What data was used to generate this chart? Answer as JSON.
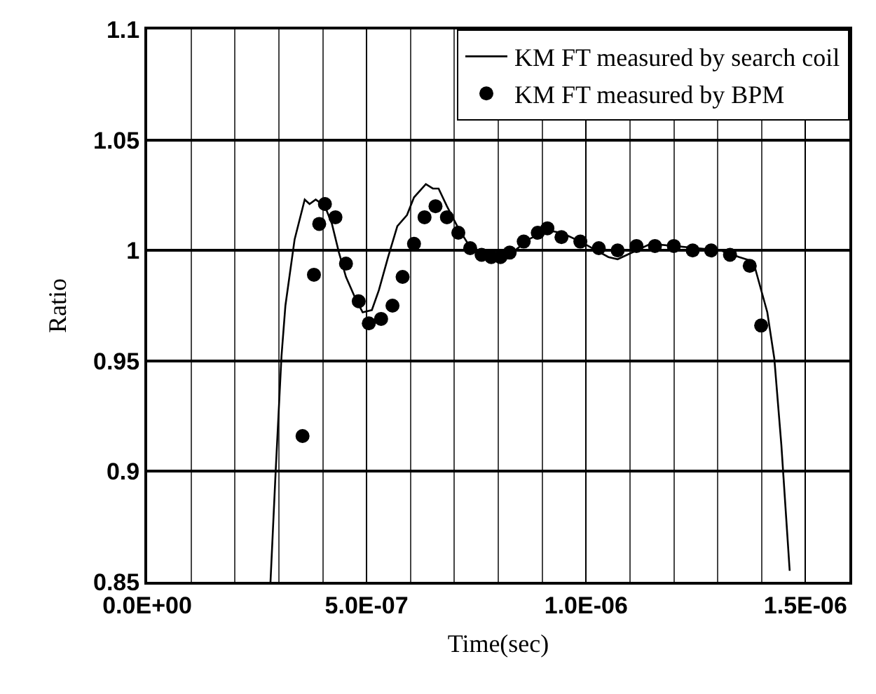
{
  "chart_data": {
    "type": "line",
    "xlabel": "Time(sec)",
    "ylabel": "Ratio",
    "xlim": [
      0,
      1.6e-06
    ],
    "ylim": [
      0.85,
      1.1
    ],
    "xticks": [
      {
        "value": 0,
        "label": "0.0E+00"
      },
      {
        "value": 5e-07,
        "label": "5.0E-07"
      },
      {
        "value": 1e-06,
        "label": "1.0E-06"
      },
      {
        "value": 1.5e-06,
        "label": "1.5E-06"
      }
    ],
    "yticks": [
      0.85,
      0.9,
      0.95,
      1,
      1.05,
      1.1
    ],
    "grid": true,
    "legend": "top right",
    "series": [
      {
        "name": "KM FT measured by search coil",
        "type": "line",
        "line_style": "solid",
        "color": "#000000",
        "x": [
          2.81e-07,
          2.93e-07,
          3.06e-07,
          3.15e-07,
          3.36e-07,
          3.59e-07,
          3.7e-07,
          3.84e-07,
          4.05e-07,
          4.21e-07,
          4.37e-07,
          4.53e-07,
          4.75e-07,
          4.91e-07,
          5.12e-07,
          5.28e-07,
          5.49e-07,
          5.7e-07,
          5.92e-07,
          6.08e-07,
          6.35e-07,
          6.51e-07,
          6.64e-07,
          6.83e-07,
          7.09e-07,
          7.31e-07,
          7.62e-07,
          7.95e-07,
          8.26e-07,
          8.69e-07,
          9.12e-07,
          9.44e-07,
          9.87e-07,
          1.051e-06,
          1.072e-06,
          1.115e-06,
          1.147e-06,
          1.2e-06,
          1.253e-06,
          1.307e-06,
          1.349e-06,
          1.381e-06,
          1.413e-06,
          1.429e-06,
          1.445e-06,
          1.464e-06
        ],
        "values": [
          0.85,
          0.901,
          0.952,
          0.975,
          1.005,
          1.023,
          1.021,
          1.023,
          1.02,
          1.012,
          0.999,
          0.988,
          0.978,
          0.972,
          0.973,
          0.982,
          0.997,
          1.011,
          1.016,
          1.024,
          1.03,
          1.028,
          1.028,
          1.02,
          1.01,
          1.003,
          0.998,
          0.996,
          0.998,
          1.005,
          1.009,
          1.008,
          1.004,
          0.997,
          0.996,
          1.0,
          1.003,
          1.002,
          1.001,
          1.0,
          0.997,
          0.995,
          0.972,
          0.951,
          0.912,
          0.855
        ]
      },
      {
        "name": "KM FT measured by BPM",
        "type": "scatter",
        "marker": "circle",
        "color": "#000000",
        "x": [
          3.54e-07,
          3.8e-07,
          3.92e-07,
          4.05e-07,
          4.29e-07,
          4.53e-07,
          4.82e-07,
          5.05e-07,
          5.33e-07,
          5.59e-07,
          5.82e-07,
          6.08e-07,
          6.32e-07,
          6.57e-07,
          6.83e-07,
          7.09e-07,
          7.36e-07,
          7.62e-07,
          7.84e-07,
          8.05e-07,
          8.26e-07,
          8.58e-07,
          8.9e-07,
          9.12e-07,
          9.44e-07,
          9.87e-07,
          1.029e-06,
          1.072e-06,
          1.115e-06,
          1.157e-06,
          1.2e-06,
          1.243e-06,
          1.285e-06,
          1.328e-06,
          1.373e-06,
          1.399e-06
        ],
        "values": [
          0.916,
          0.989,
          1.012,
          1.021,
          1.015,
          0.994,
          0.977,
          0.967,
          0.969,
          0.975,
          0.988,
          1.003,
          1.015,
          1.02,
          1.015,
          1.008,
          1.001,
          0.998,
          0.997,
          0.997,
          0.999,
          1.004,
          1.008,
          1.01,
          1.006,
          1.004,
          1.001,
          1.0,
          1.002,
          1.002,
          1.002,
          1.0,
          1.0,
          0.998,
          0.993,
          0.966
        ]
      }
    ]
  }
}
